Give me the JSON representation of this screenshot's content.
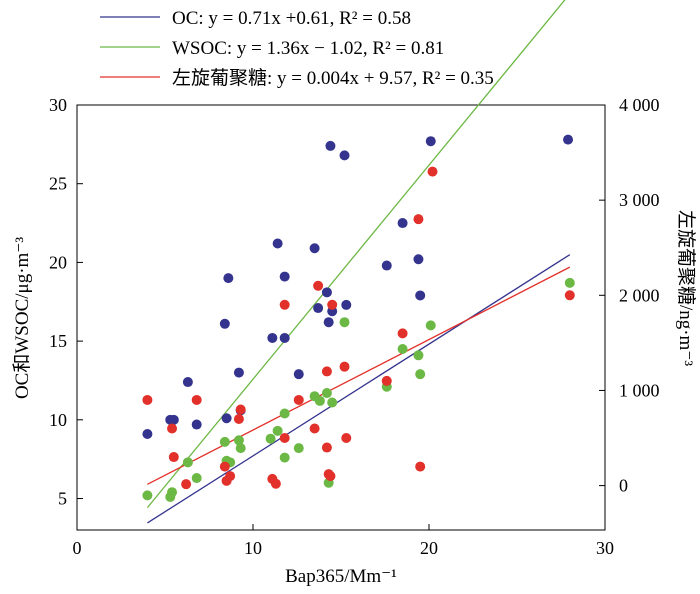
{
  "chart_data": {
    "type": "scatter",
    "title": "",
    "xlabel": "Bap365/Mm⁻¹",
    "ylabel_left": "OC和WSOC/μg·m⁻³",
    "ylabel_right": "左旋葡聚糖/ng·m⁻³",
    "xlim": [
      0,
      30
    ],
    "ylim_left": [
      3,
      30
    ],
    "ylim_right": [
      -466.7,
      4000
    ],
    "x_ticks": [
      "0",
      "10",
      "20",
      "30"
    ],
    "y_left_ticks": [
      "5",
      "10",
      "15",
      "20",
      "25",
      "30"
    ],
    "y_right_ticks": [
      "0",
      "1 000",
      "2 000",
      "3 000",
      "4 000"
    ],
    "grid": false,
    "legend_position": "top-left (above plot)",
    "colors": {
      "OC": "#34348f",
      "WSOC": "#6cb844",
      "levoglucosan": "#e2302a"
    },
    "series": [
      {
        "name": "OC",
        "axis": "left",
        "color": "#34348f",
        "legend": "OC: y = 0.71x  +0.61, R² = 0.58",
        "fit": {
          "slope": 0.71,
          "intercept": 0.61,
          "x_range": [
            4.0,
            28.0
          ]
        },
        "points": [
          [
            4.0,
            9.1
          ],
          [
            5.3,
            10.0
          ],
          [
            5.5,
            10.0
          ],
          [
            6.3,
            12.4
          ],
          [
            6.8,
            9.7
          ],
          [
            8.4,
            16.1
          ],
          [
            8.5,
            10.1
          ],
          [
            8.6,
            19.0
          ],
          [
            9.2,
            13.0
          ],
          [
            9.3,
            10.6
          ],
          [
            11.1,
            15.2
          ],
          [
            11.4,
            21.2
          ],
          [
            11.8,
            19.1
          ],
          [
            11.8,
            15.2
          ],
          [
            12.6,
            12.9
          ],
          [
            13.5,
            20.9
          ],
          [
            13.7,
            17.1
          ],
          [
            14.2,
            18.1
          ],
          [
            14.3,
            16.2
          ],
          [
            14.4,
            27.4
          ],
          [
            14.5,
            16.9
          ],
          [
            15.2,
            26.8
          ],
          [
            15.3,
            17.3
          ],
          [
            17.6,
            19.8
          ],
          [
            18.5,
            22.5
          ],
          [
            19.4,
            20.2
          ],
          [
            19.5,
            17.9
          ],
          [
            20.1,
            27.7
          ],
          [
            27.9,
            27.8
          ]
        ]
      },
      {
        "name": "WSOC",
        "axis": "left",
        "color": "#6cb844",
        "legend": "WSOC: y = 1.36x −  1.02, R² = 0.81",
        "fit": {
          "slope": 1.36,
          "intercept": -1.02,
          "x_range": [
            4.0,
            28.0
          ]
        },
        "points": [
          [
            4.0,
            5.2
          ],
          [
            5.3,
            5.1
          ],
          [
            5.4,
            5.4
          ],
          [
            6.3,
            7.3
          ],
          [
            6.8,
            6.3
          ],
          [
            8.4,
            8.6
          ],
          [
            8.5,
            7.4
          ],
          [
            8.7,
            7.3
          ],
          [
            9.2,
            8.7
          ],
          [
            9.3,
            8.2
          ],
          [
            11.0,
            8.8
          ],
          [
            11.4,
            9.3
          ],
          [
            11.8,
            10.4
          ],
          [
            11.8,
            7.6
          ],
          [
            12.6,
            8.2
          ],
          [
            13.5,
            11.5
          ],
          [
            13.8,
            11.2
          ],
          [
            14.2,
            11.7
          ],
          [
            14.3,
            6.0
          ],
          [
            14.5,
            11.1
          ],
          [
            15.2,
            16.2
          ],
          [
            17.6,
            12.1
          ],
          [
            18.5,
            14.5
          ],
          [
            19.4,
            14.1
          ],
          [
            19.5,
            12.9
          ],
          [
            20.1,
            16.0
          ],
          [
            28.0,
            18.7
          ]
        ]
      },
      {
        "name": "左旋葡聚糖",
        "axis": "right",
        "color": "#e2302a",
        "legend": "左旋葡聚糖:  y = 0.004x + 9.57, R² = 0.35",
        "fit": {
          "y_left_at_x": [
            [
              4.0,
              5.9
            ],
            [
              28.0,
              19.7
            ]
          ]
        },
        "points": [
          [
            4.0,
            900
          ],
          [
            5.4,
            600
          ],
          [
            5.5,
            300
          ],
          [
            6.2,
            15
          ],
          [
            6.8,
            900
          ],
          [
            8.4,
            200
          ],
          [
            8.5,
            50
          ],
          [
            8.7,
            100
          ],
          [
            9.2,
            700
          ],
          [
            9.3,
            800
          ],
          [
            11.1,
            70
          ],
          [
            11.3,
            20
          ],
          [
            11.8,
            500
          ],
          [
            11.8,
            1900
          ],
          [
            12.6,
            900
          ],
          [
            13.5,
            600
          ],
          [
            13.7,
            2100
          ],
          [
            14.2,
            1200
          ],
          [
            14.2,
            400
          ],
          [
            14.3,
            120
          ],
          [
            14.4,
            100
          ],
          [
            14.5,
            1900
          ],
          [
            15.2,
            1250
          ],
          [
            15.3,
            500
          ],
          [
            17.6,
            1100
          ],
          [
            18.5,
            1600
          ],
          [
            19.4,
            2800
          ],
          [
            19.5,
            200
          ],
          [
            20.2,
            3300
          ],
          [
            28.0,
            2000
          ]
        ]
      }
    ]
  }
}
